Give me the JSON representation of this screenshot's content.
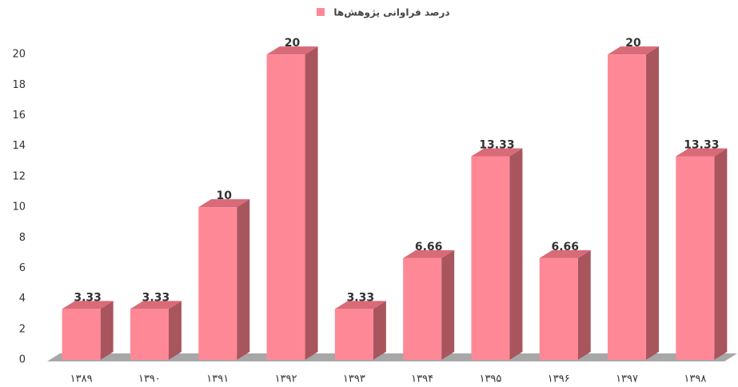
{
  "chart_data": {
    "type": "bar3d",
    "legend": "درصد فراوانی پژوهش‌ها",
    "color": "#ff8896",
    "categories": [
      "۱۳۸۹",
      "۱۳۹۰",
      "۱۳۹۱",
      "۱۳۹۲",
      "۱۳۹۳",
      "۱۳۹۴",
      "۱۳۹۵",
      "۱۳۹۶",
      "۱۳۹۷",
      "۱۳۹۸"
    ],
    "values": [
      3.33,
      3.33,
      10,
      20,
      3.33,
      6.66,
      13.33,
      6.66,
      20,
      13.33
    ],
    "ylim": [
      0,
      22
    ],
    "yticks": [
      0,
      2,
      4,
      6,
      8,
      10,
      12,
      14,
      16,
      18,
      20
    ],
    "grid": false
  }
}
